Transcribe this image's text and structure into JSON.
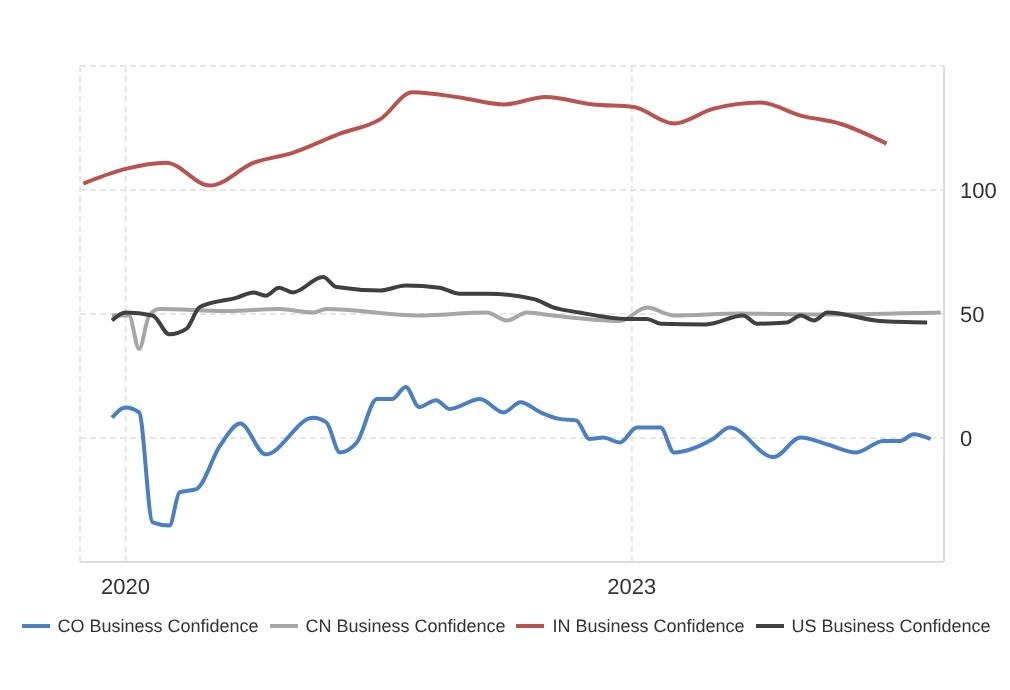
{
  "chart_data": {
    "type": "line",
    "xlim": [
      2019.73,
      2024.85
    ],
    "xticks": [
      2020,
      2023
    ],
    "ylim": [
      -50,
      150
    ],
    "yticks": [
      0,
      50,
      100
    ],
    "grid": true,
    "legend": "bottom",
    "marker": "none",
    "line_style": "solid",
    "series": [
      {
        "name": "CO Business Confidence",
        "color": "#4a7fc1",
        "x": [
          2019.92,
          2020.0,
          2020.08,
          2020.16,
          2020.26,
          2020.32,
          2020.42,
          2020.56,
          2020.68,
          2020.83,
          2021.11,
          2021.19,
          2021.27,
          2021.37,
          2021.49,
          2021.58,
          2021.66,
          2021.74,
          2021.84,
          2021.92,
          2022.1,
          2022.24,
          2022.34,
          2022.46,
          2022.57,
          2022.67,
          2022.75,
          2022.83,
          2022.93,
          2023.03,
          2023.17,
          2023.25,
          2023.48,
          2023.58,
          2023.84,
          2024.0,
          2024.16,
          2024.33,
          2024.49,
          2024.59,
          2024.67,
          2024.77
        ],
        "values": [
          8.2,
          12.3,
          10.3,
          -34,
          -35.3,
          -21.9,
          -20.6,
          -3.1,
          5.8,
          -6.6,
          8.2,
          6.3,
          -5.8,
          -1.8,
          15.7,
          15.7,
          20.6,
          12.5,
          15.2,
          11.7,
          15.7,
          10.3,
          14.4,
          10.3,
          7.7,
          7.1,
          -0.4,
          0.2,
          -1.8,
          4.2,
          4.2,
          -5.8,
          -0.4,
          4.2,
          -7.7,
          0.2,
          -2.6,
          -5.8,
          -1.2,
          -1.2,
          1.5,
          -0.4
        ]
      },
      {
        "name": "CN Business Confidence",
        "color": "#a6a6a6",
        "x": [
          2019.92,
          2020.02,
          2020.08,
          2020.14,
          2020.2,
          2020.6,
          2020.91,
          2021.11,
          2021.19,
          2021.74,
          2022.14,
          2022.26,
          2022.38,
          2022.53,
          2022.93,
          2023.09,
          2023.25,
          2023.64,
          2024.12,
          2024.83
        ],
        "values": [
          49.4,
          49.4,
          35.9,
          49.4,
          52,
          51.2,
          52,
          50.6,
          52,
          49.4,
          50.6,
          47.4,
          50.6,
          49.4,
          47.2,
          52.6,
          49.4,
          50.2,
          49.8,
          50.6
        ]
      },
      {
        "name": "IN Business Confidence",
        "color": "#b85450",
        "x": [
          2019.75,
          2020.0,
          2020.24,
          2020.5,
          2020.76,
          2020.99,
          2021.27,
          2021.51,
          2021.7,
          2021.98,
          2022.24,
          2022.49,
          2022.77,
          2023.01,
          2023.25,
          2023.48,
          2023.76,
          2024.0,
          2024.23,
          2024.51
        ],
        "values": [
          102.6,
          108.5,
          111,
          101.8,
          111,
          115,
          122.7,
          128.6,
          139.4,
          137.3,
          134.5,
          137.5,
          134.5,
          133.5,
          126.8,
          132.7,
          135.3,
          130,
          126.8,
          118.7
        ]
      },
      {
        "name": "US Business Confidence",
        "color": "#404040",
        "x": [
          2019.92,
          2020.0,
          2020.16,
          2020.26,
          2020.36,
          2020.44,
          2020.66,
          2020.76,
          2020.83,
          2020.91,
          2020.99,
          2021.17,
          2021.25,
          2021.51,
          2021.66,
          2021.86,
          2021.98,
          2022.14,
          2022.42,
          2022.53,
          2022.69,
          2022.97,
          2023.09,
          2023.17,
          2023.44,
          2023.66,
          2023.74,
          2023.92,
          2024.0,
          2024.08,
          2024.16,
          2024.47,
          2024.75
        ],
        "values": [
          47.4,
          50.6,
          49.4,
          41.8,
          44,
          52.8,
          56.6,
          58.7,
          57.4,
          60.6,
          58.7,
          64.9,
          60.9,
          59.5,
          61.5,
          60.6,
          58.2,
          58.2,
          56,
          52.8,
          50.6,
          48,
          48,
          46.1,
          45.8,
          49.4,
          46.1,
          46.6,
          49.4,
          47.4,
          50.6,
          47.2,
          46.6
        ]
      }
    ]
  }
}
